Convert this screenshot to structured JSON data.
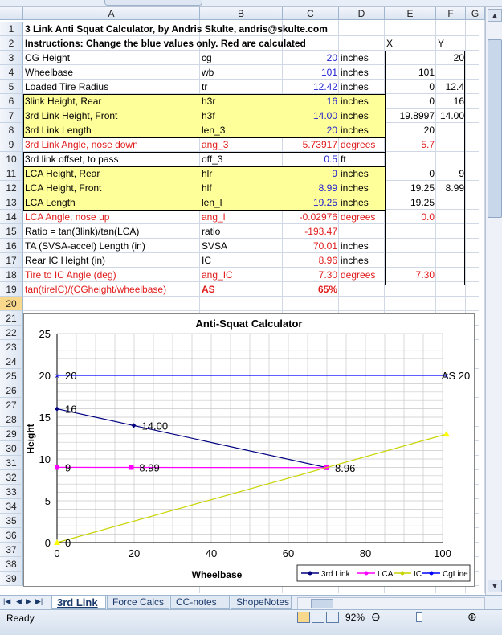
{
  "columns": [
    "A",
    "B",
    "C",
    "D",
    "E",
    "F",
    "G"
  ],
  "rows": [
    {
      "n": "1",
      "A": "3 Link Anti Squat Calculator, by Andris Skulte, andris@skulte.com",
      "B": "",
      "C": "",
      "D": "",
      "E": "",
      "F": ""
    },
    {
      "n": "2",
      "A": "Instructions: Change the blue values only. Red are calculated",
      "B": "",
      "C": "",
      "D": "",
      "E": "X",
      "F": "Y"
    },
    {
      "n": "3",
      "A": "CG Height",
      "B": "cg",
      "C": "20",
      "D": "inches",
      "E": "",
      "F": "20"
    },
    {
      "n": "4",
      "A": "Wheelbase",
      "B": "wb",
      "C": "101",
      "D": "inches",
      "E": "101",
      "F": ""
    },
    {
      "n": "5",
      "A": "Loaded Tire Radius",
      "B": "tr",
      "C": "12.42",
      "D": "inches",
      "E": "0",
      "F": "12.4"
    },
    {
      "n": "6",
      "A": "3link Height, Rear",
      "B": "h3r",
      "C": "16",
      "D": "inches",
      "E": "0",
      "F": "16"
    },
    {
      "n": "7",
      "A": "3rd Link Height, Front",
      "B": "h3f",
      "C": "14.00",
      "D": "inches",
      "E": "19.8997",
      "F": "14.00"
    },
    {
      "n": "8",
      "A": "3rd Link Length",
      "B": "len_3",
      "C": "20",
      "D": "inches",
      "E": "20",
      "F": ""
    },
    {
      "n": "9",
      "A": "3rd Link Angle, nose down",
      "B": "ang_3",
      "C": "5.73917",
      "D": "degrees",
      "E": "5.7",
      "F": ""
    },
    {
      "n": "10",
      "A": "3rd link offset, to pass",
      "B": "off_3",
      "C": "0.5",
      "D": "ft",
      "E": "",
      "F": ""
    },
    {
      "n": "11",
      "A": "LCA Height, Rear",
      "B": "hlr",
      "C": "9",
      "D": "inches",
      "E": "0",
      "F": "9"
    },
    {
      "n": "12",
      "A": "LCA Height, Front",
      "B": "hlf",
      "C": "8.99",
      "D": "inches",
      "E": "19.25",
      "F": "8.99"
    },
    {
      "n": "13",
      "A": "LCA Length",
      "B": "len_l",
      "C": "19.25",
      "D": "inches",
      "E": "19.25",
      "F": ""
    },
    {
      "n": "14",
      "A": "LCA Angle, nose up",
      "B": "ang_l",
      "C": "-0.02976",
      "D": "degrees",
      "E": "0.0",
      "F": ""
    },
    {
      "n": "15",
      "A": "Ratio = tan(3link)/tan(LCA)",
      "B": "ratio",
      "C": "-193.47",
      "D": "",
      "E": "",
      "F": ""
    },
    {
      "n": "16",
      "A": "TA (SVSA-accel) Length (in)",
      "B": "SVSA",
      "C": "70.01",
      "D": "inches",
      "E": "",
      "F": ""
    },
    {
      "n": "17",
      "A": "Rear IC Height (in)",
      "B": "IC",
      "C": "8.96",
      "D": "inches",
      "E": "",
      "F": ""
    },
    {
      "n": "18",
      "A": "Tire to IC Angle (deg)",
      "B": "ang_IC",
      "C": "7.30",
      "D": "degrees",
      "E": "7.30",
      "F": ""
    },
    {
      "n": "19",
      "A": "tan(tireIC)/(CGheight/wheelbase)",
      "B": "AS",
      "C": "65%",
      "D": "",
      "E": "",
      "F": ""
    }
  ],
  "extra_rows": [
    "20",
    "21",
    "22",
    "23",
    "24",
    "25",
    "26",
    "27",
    "28",
    "29",
    "30",
    "31",
    "32",
    "33",
    "34",
    "35",
    "36",
    "37",
    "38",
    "39"
  ],
  "chart_data": {
    "type": "line",
    "title": "Anti-Squat Calculator",
    "xlabel": "Wheelbase",
    "ylabel": "Height",
    "xlim": [
      0,
      100
    ],
    "ylim": [
      0,
      25
    ],
    "xticks": [
      "0",
      "20",
      "40",
      "60",
      "80",
      "100"
    ],
    "yticks": [
      "0",
      "5",
      "10",
      "15",
      "20",
      "25"
    ],
    "grid": true,
    "legend": "bottom-right",
    "series": [
      {
        "name": "3rd Link",
        "color": "#000080",
        "points": [
          [
            0,
            16
          ],
          [
            19.8997,
            14
          ],
          [
            70.01,
            8.96
          ]
        ],
        "labels": [
          "16",
          "14.00",
          "8.96"
        ]
      },
      {
        "name": "LCA",
        "color": "#ff00ff",
        "points": [
          [
            0,
            9
          ],
          [
            19.25,
            8.99
          ],
          [
            70.01,
            8.96
          ]
        ],
        "labels": [
          "9",
          "8.99",
          ""
        ]
      },
      {
        "name": "IC",
        "color": "#c8d400",
        "points": [
          [
            0,
            0
          ],
          [
            101,
            12.97
          ]
        ],
        "labels": [
          "0",
          ""
        ]
      },
      {
        "name": "CgLine",
        "color": "#0000ff",
        "points": [
          [
            0,
            20
          ],
          [
            101,
            20
          ]
        ],
        "labels": [
          "20",
          "AS 20"
        ]
      }
    ]
  },
  "tabs": [
    "3rd Link",
    "Force Calcs",
    "CC-notes",
    "ShopeNotes"
  ],
  "status": {
    "ready": "Ready",
    "zoom": "92%"
  }
}
